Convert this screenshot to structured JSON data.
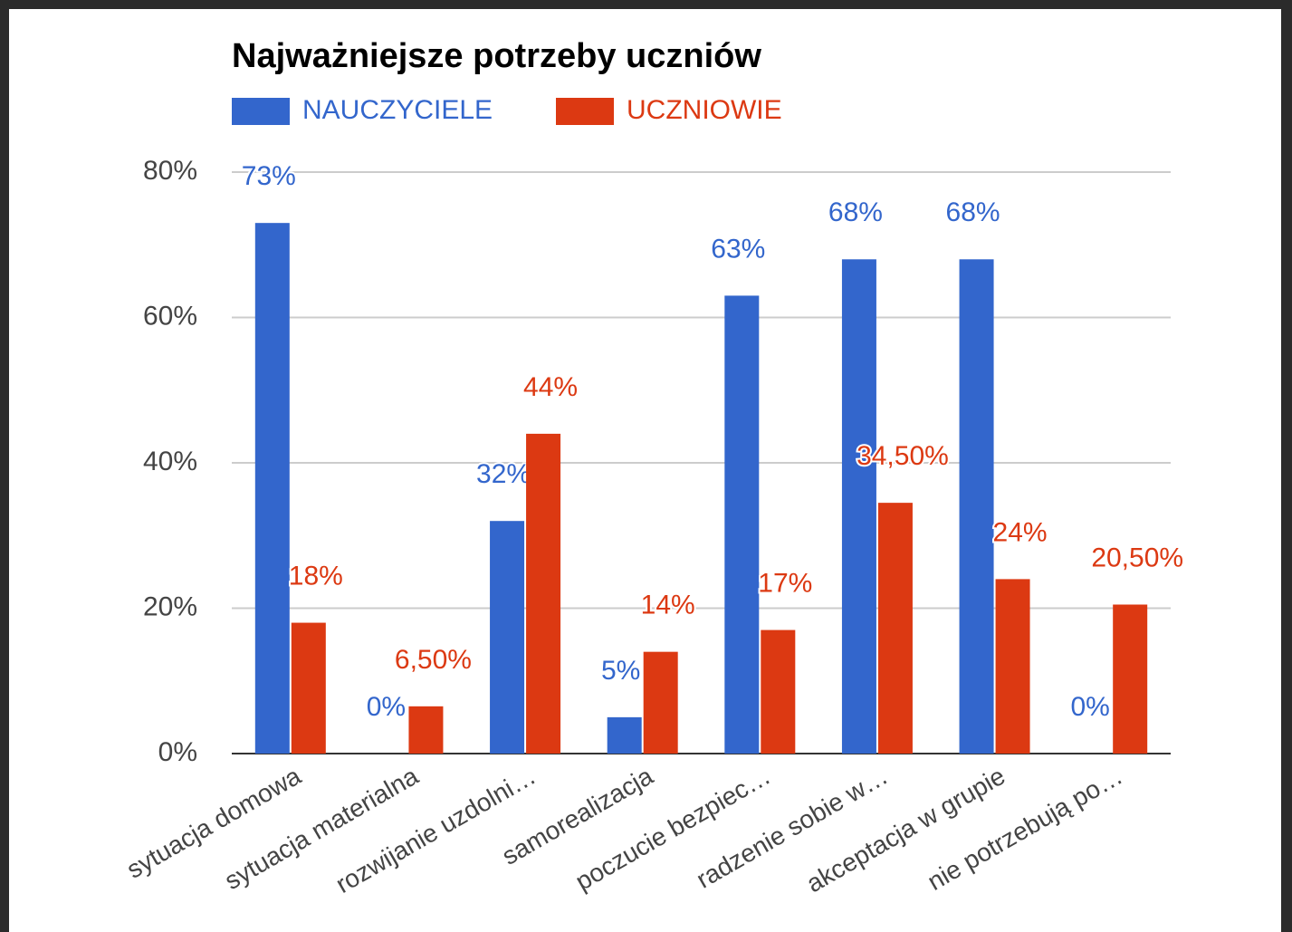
{
  "chart_data": {
    "type": "bar",
    "title": "Najważniejsze potrzeby uczniów",
    "categories": [
      "sytuacja domowa",
      "sytuacja materialna",
      "rozwijanie uzdolni…",
      "samorealizacja",
      "poczucie bezpiec…",
      "radzenie sobie w…",
      "akceptacja w grupie",
      "nie potrzebują po…"
    ],
    "series": [
      {
        "name": "NAUCZYCIELE",
        "color": "#3366cc",
        "values": [
          73,
          0,
          32,
          5,
          63,
          68,
          68,
          0
        ],
        "value_labels": [
          "73%",
          "0%",
          "32%",
          "5%",
          "63%",
          "68%",
          "68%",
          "0%"
        ]
      },
      {
        "name": "UCZNIOWIE",
        "color": "#dc3912",
        "values": [
          18,
          6.5,
          44,
          14,
          17,
          34.5,
          24,
          20.5
        ],
        "value_labels": [
          "18%",
          "6,50%",
          "44%",
          "14%",
          "17%",
          "34,50%",
          "24%",
          "20,50%"
        ]
      }
    ],
    "ylim": [
      0,
      80
    ],
    "yticks": [
      {
        "value": 0,
        "label": "0%"
      },
      {
        "value": 20,
        "label": "20%"
      },
      {
        "value": 40,
        "label": "40%"
      },
      {
        "value": 60,
        "label": "60%"
      },
      {
        "value": 80,
        "label": "80%"
      }
    ],
    "grid": true,
    "legend": "top"
  }
}
